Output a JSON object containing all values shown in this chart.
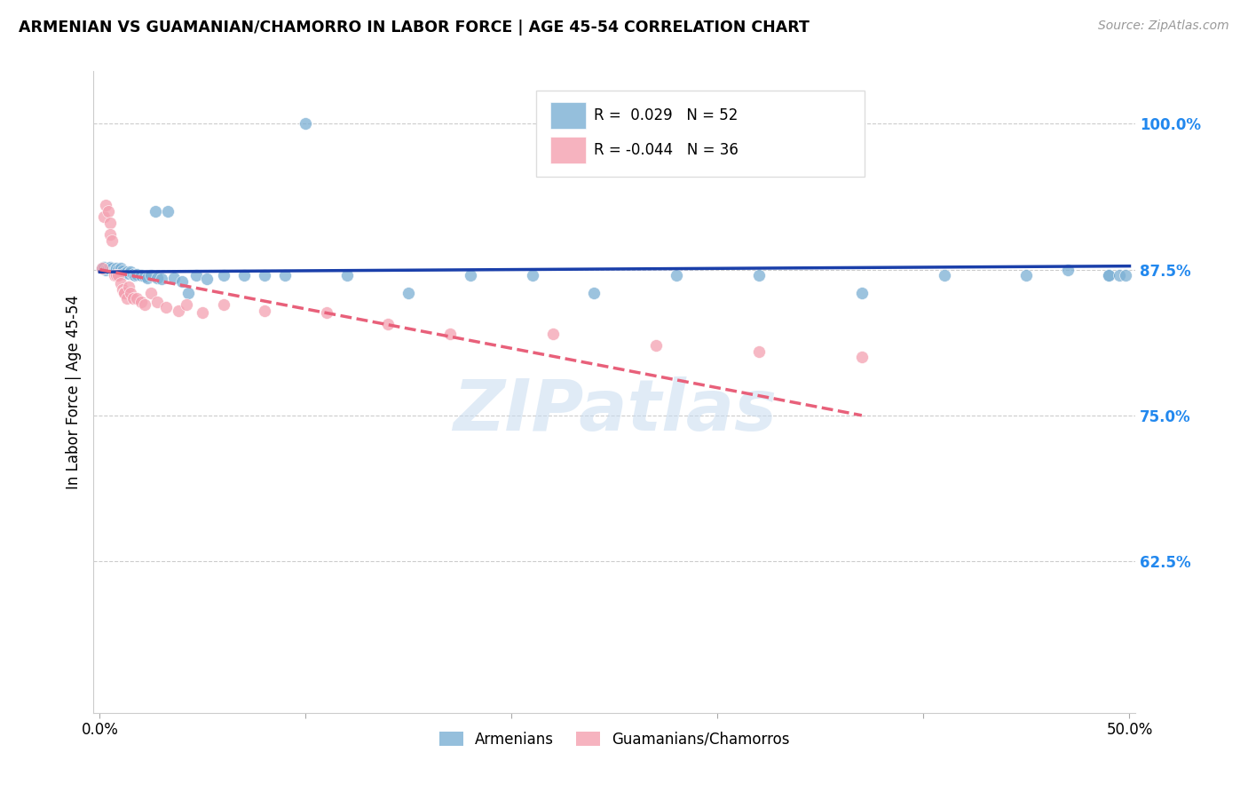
{
  "title": "ARMENIAN VS GUAMANIAN/CHAMORRO IN LABOR FORCE | AGE 45-54 CORRELATION CHART",
  "source": "Source: ZipAtlas.com",
  "ylabel": "In Labor Force | Age 45-54",
  "xlim_min": -0.003,
  "xlim_max": 0.503,
  "ylim_min": 0.495,
  "ylim_max": 1.045,
  "xticks": [
    0.0,
    0.1,
    0.2,
    0.3,
    0.4,
    0.5
  ],
  "xticklabels": [
    "0.0%",
    "",
    "",
    "",
    "",
    "50.0%"
  ],
  "ytick_positions": [
    0.625,
    0.75,
    0.875,
    1.0
  ],
  "ytick_labels": [
    "62.5%",
    "75.0%",
    "87.5%",
    "100.0%"
  ],
  "r_armenian": 0.029,
  "n_armenian": 52,
  "r_guamanian": -0.044,
  "n_guamanian": 36,
  "armenian_color": "#7BAFD4",
  "guamanian_color": "#F4A0B0",
  "armenian_line_color": "#1A3FAA",
  "guamanian_line_color": "#E8607A",
  "watermark": "ZIPatlas",
  "arm_line_x0": 0.0,
  "arm_line_x1": 0.5,
  "arm_line_y0": 0.873,
  "arm_line_y1": 0.878,
  "gua_line_x0": 0.0,
  "gua_line_x1": 0.37,
  "gua_line_y0": 0.875,
  "gua_line_y1": 0.75,
  "armenian_x": [
    0.001,
    0.002,
    0.003,
    0.004,
    0.005,
    0.006,
    0.007,
    0.007,
    0.008,
    0.009,
    0.01,
    0.011,
    0.012,
    0.013,
    0.014,
    0.015,
    0.016,
    0.017,
    0.018,
    0.02,
    0.022,
    0.023,
    0.025,
    0.027,
    0.028,
    0.03,
    0.033,
    0.036,
    0.04,
    0.043,
    0.047,
    0.052,
    0.06,
    0.07,
    0.08,
    0.09,
    0.1,
    0.12,
    0.15,
    0.18,
    0.21,
    0.24,
    0.28,
    0.32,
    0.37,
    0.41,
    0.45,
    0.47,
    0.49,
    0.49,
    0.495,
    0.498
  ],
  "armenian_y": [
    0.876,
    0.877,
    0.875,
    0.876,
    0.877,
    0.876,
    0.875,
    0.873,
    0.876,
    0.875,
    0.876,
    0.874,
    0.872,
    0.873,
    0.872,
    0.873,
    0.871,
    0.87,
    0.871,
    0.87,
    0.869,
    0.868,
    0.87,
    0.925,
    0.868,
    0.867,
    0.925,
    0.868,
    0.865,
    0.855,
    0.87,
    0.867,
    0.87,
    0.87,
    0.87,
    0.87,
    1.0,
    0.87,
    0.855,
    0.87,
    0.87,
    0.855,
    0.87,
    0.87,
    0.855,
    0.87,
    0.87,
    0.875,
    0.87,
    0.87,
    0.87,
    0.87
  ],
  "guamanian_x": [
    0.001,
    0.002,
    0.003,
    0.004,
    0.005,
    0.005,
    0.006,
    0.007,
    0.008,
    0.009,
    0.01,
    0.011,
    0.012,
    0.012,
    0.013,
    0.014,
    0.015,
    0.016,
    0.018,
    0.02,
    0.022,
    0.025,
    0.028,
    0.032,
    0.038,
    0.042,
    0.05,
    0.06,
    0.08,
    0.11,
    0.14,
    0.17,
    0.22,
    0.27,
    0.32,
    0.37
  ],
  "guamanian_y": [
    0.876,
    0.92,
    0.93,
    0.925,
    0.915,
    0.905,
    0.9,
    0.87,
    0.87,
    0.87,
    0.863,
    0.858,
    0.856,
    0.855,
    0.85,
    0.86,
    0.855,
    0.85,
    0.85,
    0.847,
    0.845,
    0.855,
    0.847,
    0.843,
    0.84,
    0.845,
    0.838,
    0.845,
    0.84,
    0.838,
    0.828,
    0.82,
    0.82,
    0.81,
    0.805,
    0.8
  ]
}
